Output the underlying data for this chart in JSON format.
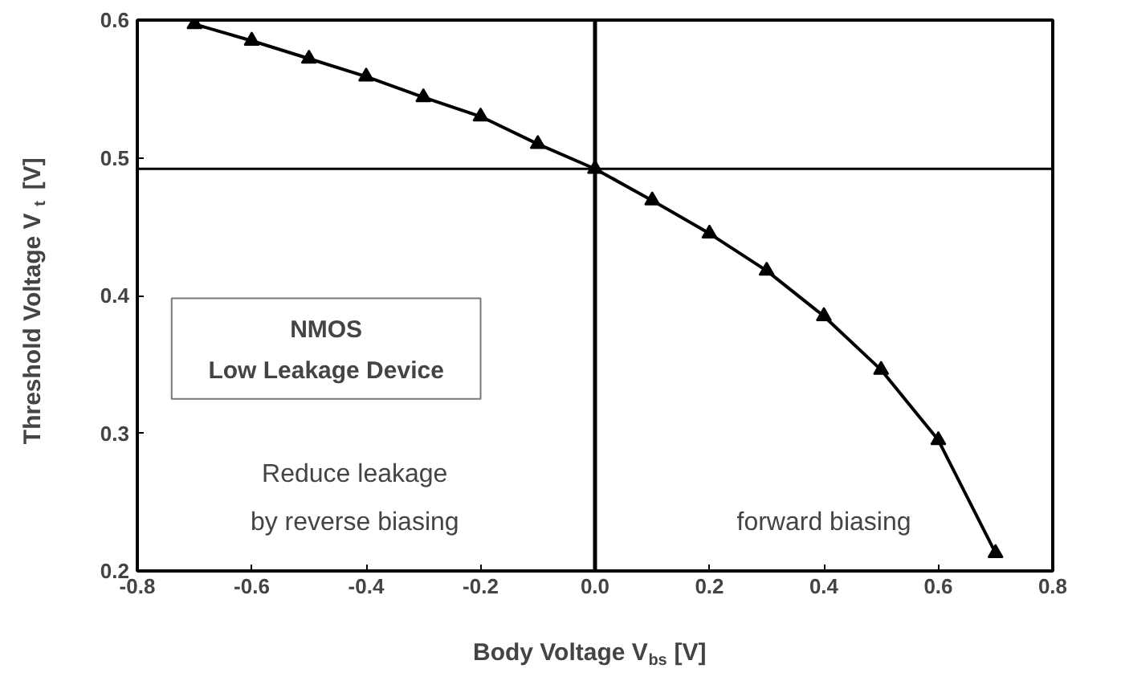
{
  "chart_data": {
    "type": "line",
    "xlabel": "Body Voltage V$_{bs}$ [V]",
    "ylabel": "Threshold Voltage V$_{t}$ [V]",
    "x": [
      -0.7,
      -0.6,
      -0.5,
      -0.4,
      -0.3,
      -0.2,
      -0.1,
      0.0,
      0.1,
      0.2,
      0.3,
      0.4,
      0.5,
      0.6,
      0.7
    ],
    "series": [
      {
        "color": "#000000",
        "values": [
          0.597,
          0.585,
          0.572,
          0.559,
          0.544,
          0.53,
          0.51,
          0.492,
          0.469,
          0.445,
          0.418,
          0.385,
          0.346,
          0.295,
          0.213
        ]
      }
    ],
    "xlim": [
      -0.8,
      0.8
    ],
    "ylim": [
      0.2,
      0.6
    ],
    "xticks": [
      {
        "value": -0.8,
        "label": "-0.8"
      },
      {
        "value": -0.6,
        "label": "-0.6"
      },
      {
        "value": -0.4,
        "label": "-0.4"
      },
      {
        "value": -0.2,
        "label": "-0.2"
      },
      {
        "value": 0,
        "label": "0.0"
      },
      {
        "value": 0.2,
        "label": "0.2"
      },
      {
        "value": 0.4,
        "label": "0.4"
      },
      {
        "value": 0.6,
        "label": "0.6"
      },
      {
        "value": 0.8,
        "label": "0.8"
      }
    ],
    "yticks": [
      0.2,
      0.3,
      0.4,
      0.5,
      0.6
    ],
    "ref_lines": [
      {
        "axis": "y",
        "value": 0.492,
        "color": "#000000"
      },
      {
        "axis": "x",
        "value": 0,
        "color": "#000000"
      }
    ],
    "annotations": [
      "NMOS",
      "Low Leakage Device",
      "Reduce leakage",
      "by reverse biasing",
      "forward biasing"
    ],
    "marker": "triangle",
    "line_style": "solid",
    "grid": false
  }
}
